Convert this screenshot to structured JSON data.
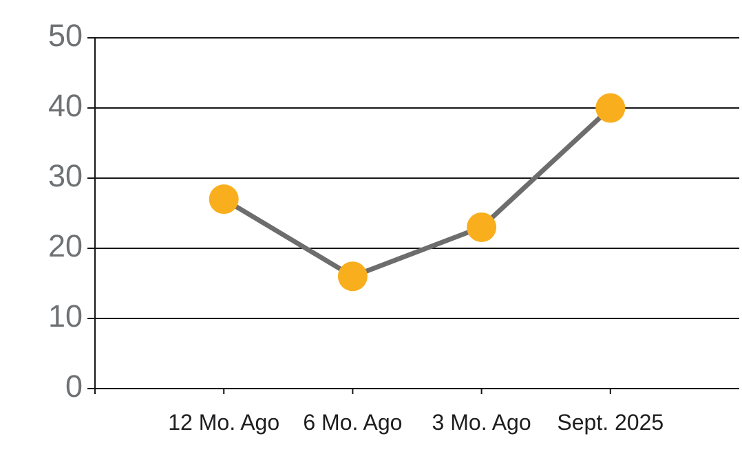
{
  "chart_data": {
    "type": "line",
    "title": "",
    "xlabel": "",
    "ylabel": "",
    "categories": [
      "12 Mo. Ago",
      "6 Mo. Ago",
      "3 Mo. Ago",
      "Sept. 2025"
    ],
    "values": [
      27,
      16,
      23,
      40
    ],
    "ylim": [
      0,
      50
    ],
    "ytick_step": 10,
    "ytick_labels": [
      "0",
      "10",
      "20",
      "30",
      "40",
      "50"
    ],
    "grid": "horizontal",
    "legend_position": "none",
    "colors": {
      "marker": "#F9AF1D",
      "line": "#6D6D6D",
      "grid_axis": "#161616",
      "ytick_text": "#6E7173",
      "xtick_text": "#1E1E20",
      "background": "#FFFFFF"
    }
  }
}
